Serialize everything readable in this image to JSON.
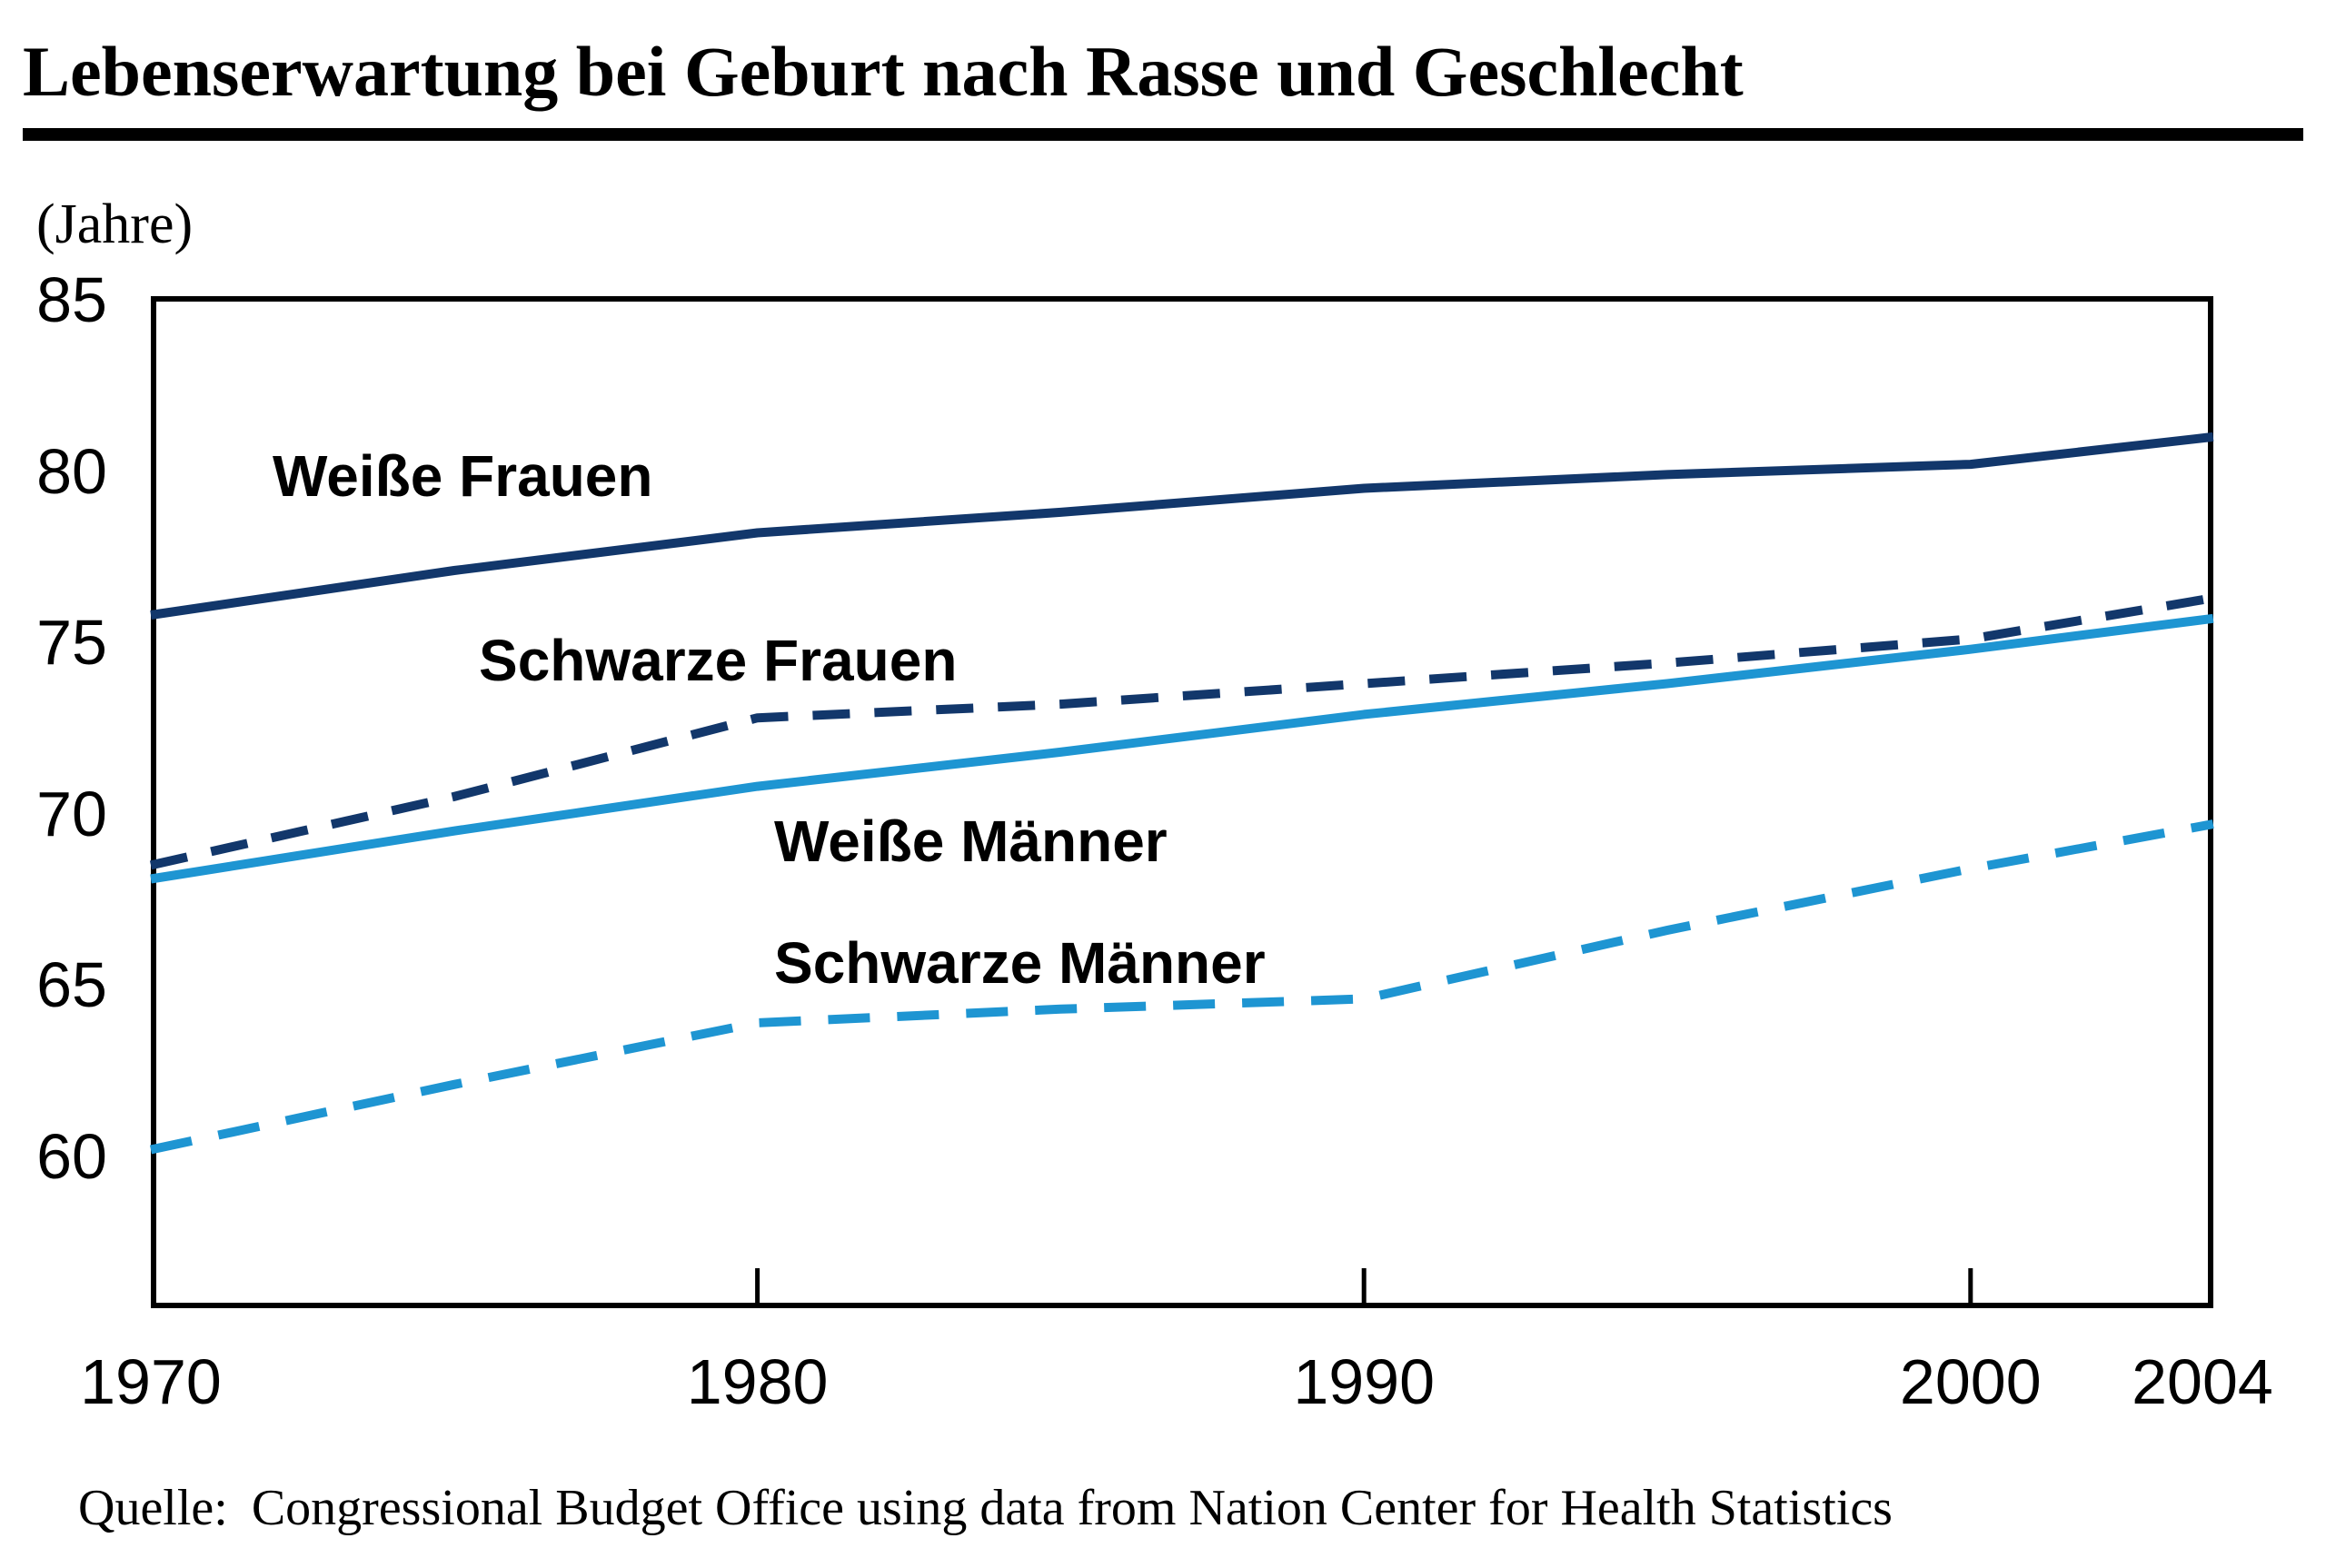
{
  "chart_data": {
    "type": "line",
    "title": "Lebenserwartung bei Geburt nach Rasse und Geschlecht",
    "unit_label": "(Jahre)",
    "x_ticks": [
      1970,
      1980,
      1990,
      2000,
      2004
    ],
    "x_ticks_with_marks": [
      1980,
      1990,
      2000
    ],
    "y_ticks": [
      85,
      80,
      75,
      70,
      65,
      60
    ],
    "x_range": [
      1970,
      2004
    ],
    "y_range": [
      55.5,
      85
    ],
    "grid": false,
    "legend_position": "inline-labels",
    "colors": {
      "dark_navy": "#12376B",
      "light_blue": "#1E95D2",
      "axis": "#000000"
    },
    "series": [
      {
        "name": "Weiße Frauen",
        "color": "#12376B",
        "style": "solid",
        "points": [
          [
            1970,
            75.8
          ],
          [
            1975,
            77.1
          ],
          [
            1980,
            78.2
          ],
          [
            1985,
            78.8
          ],
          [
            1990,
            79.5
          ],
          [
            1995,
            79.9
          ],
          [
            2000,
            80.2
          ],
          [
            2004,
            81.0
          ]
        ]
      },
      {
        "name": "Schwarze Frauen",
        "color": "#12376B",
        "style": "dashed",
        "points": [
          [
            1970,
            68.5
          ],
          [
            1975,
            70.5
          ],
          [
            1980,
            72.8
          ],
          [
            1985,
            73.2
          ],
          [
            1990,
            73.8
          ],
          [
            1995,
            74.4
          ],
          [
            2000,
            75.1
          ],
          [
            2004,
            76.3
          ]
        ]
      },
      {
        "name": "Weiße Männer",
        "color": "#1E95D2",
        "style": "solid",
        "points": [
          [
            1970,
            68.1
          ],
          [
            1975,
            69.5
          ],
          [
            1980,
            70.8
          ],
          [
            1985,
            71.8
          ],
          [
            1990,
            72.9
          ],
          [
            1995,
            73.8
          ],
          [
            2000,
            74.8
          ],
          [
            2004,
            75.7
          ]
        ]
      },
      {
        "name": "Schwarze Männer",
        "color": "#1E95D2",
        "style": "dashed",
        "points": [
          [
            1970,
            60.2
          ],
          [
            1975,
            62.1
          ],
          [
            1980,
            63.9
          ],
          [
            1985,
            64.3
          ],
          [
            1990,
            64.6
          ],
          [
            1995,
            66.6
          ],
          [
            2000,
            68.4
          ],
          [
            2004,
            69.7
          ]
        ]
      }
    ],
    "source": {
      "prefix": "Quelle:",
      "text": "Congressional Budget Office using data from Nation Center for Health Statistics"
    }
  }
}
